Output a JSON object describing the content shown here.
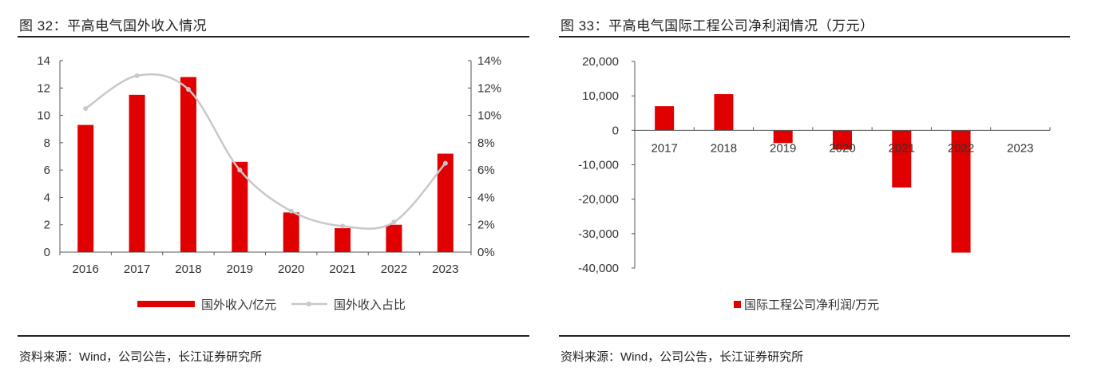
{
  "left": {
    "title": "图 32：平高电气国外收入情况",
    "source": "资料来源：Wind，公司公告，长江证券研究所"
  },
  "right": {
    "title": "图 33：平高电气国际工程公司净利润情况（万元）",
    "source": "资料来源：Wind，公司公告，长江证券研究所"
  },
  "colors": {
    "bar": "#e00000",
    "line": "#c8c8c8",
    "axis": "#555555"
  },
  "chart_data": [
    {
      "type": "bar+line",
      "categories": [
        "2016",
        "2017",
        "2018",
        "2019",
        "2020",
        "2021",
        "2022",
        "2023"
      ],
      "series": [
        {
          "name": "国外收入/亿元",
          "type": "bar",
          "axis": "left",
          "values": [
            9.3,
            11.5,
            12.8,
            6.6,
            2.9,
            1.75,
            2.0,
            7.2
          ]
        },
        {
          "name": "国外收入占比",
          "type": "line",
          "axis": "right",
          "values": [
            10.5,
            12.9,
            11.9,
            6.0,
            3.0,
            1.9,
            2.2,
            6.5
          ]
        }
      ],
      "ylim": [
        0,
        14
      ],
      "y_ticks": [
        "0",
        "2",
        "4",
        "6",
        "8",
        "10",
        "12",
        "14"
      ],
      "y2lim": [
        0,
        14
      ],
      "y2_ticks": [
        "0%",
        "2%",
        "4%",
        "6%",
        "8%",
        "10%",
        "12%",
        "14%"
      ],
      "legend": "bottom",
      "grid": false
    },
    {
      "type": "bar",
      "categories": [
        "2017",
        "2018",
        "2019",
        "2020",
        "2021",
        "2022",
        "2023"
      ],
      "series": [
        {
          "name": "国际工程公司净利润/万元",
          "values": [
            7000,
            10500,
            -3700,
            -5600,
            -16600,
            -35500,
            null
          ]
        }
      ],
      "ylim": [
        -40000,
        20000
      ],
      "y_ticks": [
        "-40,000",
        "-30,000",
        "-20,000",
        "-10,000",
        "0",
        "10,000",
        "20,000"
      ],
      "legend": "bottom",
      "grid": false
    }
  ]
}
